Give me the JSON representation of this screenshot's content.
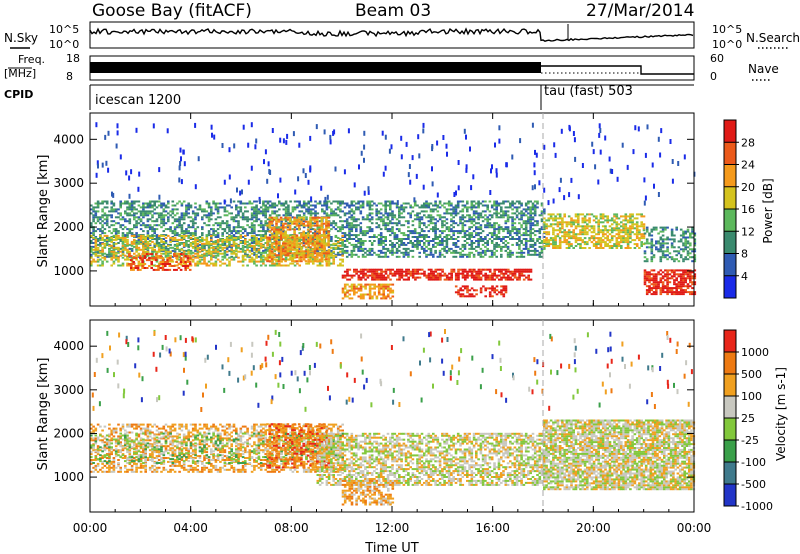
{
  "header": {
    "station": "Goose Bay (fitACF)",
    "beam": "Beam 03",
    "date": "27/Mar/2014"
  },
  "status_panel": {
    "nsky_label": "N.Sky",
    "nsky_ticks": [
      "10^5",
      "10^0"
    ],
    "nsearch_label": "N.Search",
    "nsearch_ticks": [
      "10^5",
      "10^0"
    ],
    "freq_label": "Freq.",
    "freq_unit": "[MHz]",
    "freq_ticks": [
      "18",
      "8"
    ],
    "nave_label": "Nave",
    "nave_ticks": [
      "60",
      "0"
    ],
    "cpid_label": "CPID",
    "modes": [
      {
        "name": "icescan 1200",
        "start_hour": 0
      },
      {
        "name": "tau (fast) 503",
        "start_hour": 18
      }
    ]
  },
  "chart_data": [
    {
      "type": "heatmap",
      "title": "",
      "xlabel": "",
      "ylabel": "Slant Range [km]",
      "xlim": [
        0,
        24
      ],
      "ylim": [
        200,
        4600
      ],
      "x_ticks": [
        "00:00",
        "04:00",
        "08:00",
        "12:00",
        "16:00",
        "20:00",
        "00:00"
      ],
      "y_ticks": [
        1000,
        2000,
        3000,
        4000
      ],
      "colorbar": {
        "label": "Power [dB]",
        "ticks": [
          "4",
          "8",
          "12",
          "16",
          "20",
          "24",
          "28"
        ],
        "colors": [
          "#1a2be8",
          "#2f5bb3",
          "#3a8a6e",
          "#5cb85c",
          "#d4c31e",
          "#f59a1b",
          "#ec5a1a",
          "#e01a16"
        ]
      },
      "mode_change_hour": 18,
      "regions": [
        {
          "t0": 0.0,
          "t1": 18.0,
          "r0": 1300,
          "r1": 2600,
          "level": 2,
          "density": 0.5
        },
        {
          "t0": 0.0,
          "t1": 10.0,
          "r0": 1100,
          "r1": 1800,
          "level": 4,
          "density": 0.5
        },
        {
          "t0": 7.0,
          "t1": 9.5,
          "r0": 1200,
          "r1": 2200,
          "level": 5,
          "density": 0.6
        },
        {
          "t0": 1.5,
          "t1": 4.0,
          "r0": 1000,
          "r1": 1400,
          "level": 6,
          "density": 0.5
        },
        {
          "t0": 10.0,
          "t1": 17.5,
          "r0": 780,
          "r1": 1050,
          "level": 7,
          "density": 0.7
        },
        {
          "t0": 10.0,
          "t1": 12.0,
          "r0": 350,
          "r1": 700,
          "level": 5,
          "density": 0.6
        },
        {
          "t0": 14.5,
          "t1": 16.5,
          "r0": 400,
          "r1": 650,
          "level": 7,
          "density": 0.5
        },
        {
          "t0": 18.0,
          "t1": 22.0,
          "r0": 1500,
          "r1": 2300,
          "level": 4,
          "density": 0.6
        },
        {
          "t0": 22.0,
          "t1": 24.0,
          "r0": 1200,
          "r1": 2000,
          "level": 2,
          "density": 0.5
        },
        {
          "t0": 22.0,
          "t1": 24.0,
          "r0": 450,
          "r1": 1000,
          "level": 7,
          "density": 0.7
        }
      ]
    },
    {
      "type": "heatmap",
      "title": "",
      "xlabel": "Time UT",
      "ylabel": "Slant Range [km]",
      "xlim": [
        0,
        24
      ],
      "ylim": [
        200,
        4600
      ],
      "x_ticks": [
        "00:00",
        "04:00",
        "08:00",
        "12:00",
        "16:00",
        "20:00",
        "00:00"
      ],
      "y_ticks": [
        1000,
        2000,
        3000,
        4000
      ],
      "colorbar": {
        "label": "Velocity [m s-1]",
        "ticks": [
          "1000",
          "500",
          "100",
          "25",
          "-25",
          "-100",
          "-500",
          "-1000"
        ],
        "colors": [
          "#2235c8",
          "#3f7a8c",
          "#3aa04a",
          "#82c83c",
          "#c8c8c0",
          "#f0a020",
          "#ee7a12",
          "#e8261a"
        ]
      },
      "mode_change_hour": 18,
      "regions": [
        {
          "t0": 0.0,
          "t1": 10.0,
          "r0": 1100,
          "r1": 2200,
          "level": 5,
          "density": 0.5
        },
        {
          "t0": 0.0,
          "t1": 10.0,
          "r0": 1300,
          "r1": 2000,
          "level": 3,
          "density": 0.3
        },
        {
          "t0": 7.0,
          "t1": 9.5,
          "r0": 1200,
          "r1": 2200,
          "level": 6,
          "density": 0.5
        },
        {
          "t0": 9.0,
          "t1": 18.0,
          "r0": 800,
          "r1": 2000,
          "level": 4,
          "density": 0.6
        },
        {
          "t0": 10.0,
          "t1": 12.0,
          "r0": 350,
          "r1": 900,
          "level": 5,
          "density": 0.6
        },
        {
          "t0": 18.0,
          "t1": 24.0,
          "r0": 700,
          "r1": 2300,
          "level": 4,
          "density": 0.8
        }
      ]
    }
  ]
}
